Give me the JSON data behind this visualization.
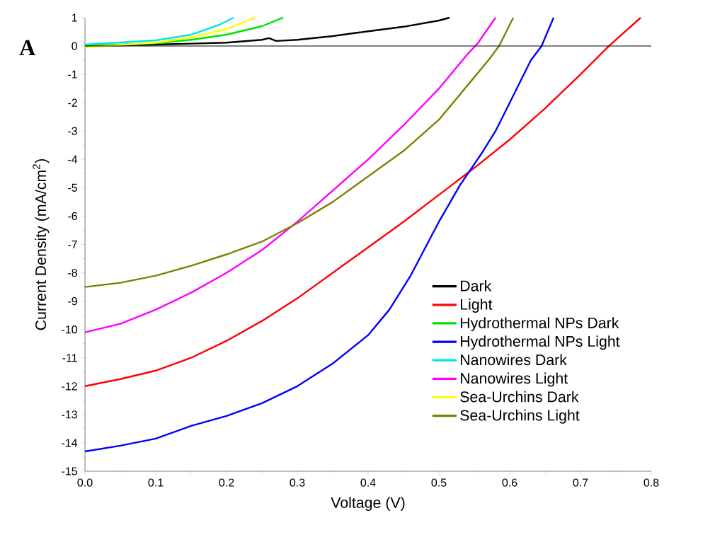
{
  "chart_data": {
    "type": "line",
    "xlabel": "Voltage (V)",
    "ylabel": "Current Density (mA/cm$^{2}$)",
    "annotations": [
      "A"
    ],
    "xlim": [
      0,
      0.8
    ],
    "ylim": [
      -15,
      1
    ],
    "xticks": [
      {
        "value": 0,
        "label": "0.0"
      },
      0.1,
      0.2,
      0.3,
      0.4,
      0.5,
      0.6,
      0.7,
      0.8
    ],
    "yticks": [
      -15,
      -14,
      -13,
      -12,
      -11,
      -10,
      -9,
      -8,
      -7,
      -6,
      -5,
      -4,
      -3,
      -2,
      -1,
      0,
      1
    ],
    "legend": "bottom right",
    "grid": false,
    "marker": "none",
    "line_style": "solid",
    "ref_lines": [
      {
        "axis": "y",
        "value": 0,
        "color": "#000000"
      }
    ],
    "series": [
      {
        "name": "Dark",
        "color": "#000000",
        "x": [
          0,
          0.1,
          0.2,
          0.25,
          0.26,
          0.27,
          0.3,
          0.35,
          0.4,
          0.45,
          0.5,
          0.515
        ],
        "values": [
          0,
          0.05,
          0.12,
          0.22,
          0.28,
          0.18,
          0.22,
          0.35,
          0.52,
          0.68,
          0.9,
          1
        ]
      },
      {
        "name": "Light",
        "color": "#ff0000",
        "x": [
          0,
          0.05,
          0.1,
          0.15,
          0.2,
          0.25,
          0.3,
          0.35,
          0.4,
          0.45,
          0.5,
          0.55,
          0.6,
          0.65,
          0.7,
          0.74,
          0.785
        ],
        "values": [
          -12,
          -11.75,
          -11.45,
          -11,
          -10.4,
          -9.7,
          -8.9,
          -8,
          -7.1,
          -6.2,
          -5.25,
          -4.3,
          -3.3,
          -2.2,
          -1,
          0,
          1
        ]
      },
      {
        "name": "Hydrothermal NPs Dark",
        "color": "#00e000",
        "x": [
          0,
          0.1,
          0.15,
          0.2,
          0.25,
          0.28
        ],
        "values": [
          0,
          0.1,
          0.22,
          0.4,
          0.7,
          1
        ]
      },
      {
        "name": "Hydrothermal NPs Light",
        "color": "#0000ff",
        "x": [
          0,
          0.05,
          0.1,
          0.15,
          0.2,
          0.25,
          0.3,
          0.35,
          0.4,
          0.43,
          0.46,
          0.5,
          0.53,
          0.56,
          0.58,
          0.6,
          0.63,
          0.645,
          0.662
        ],
        "values": [
          -14.3,
          -14.1,
          -13.85,
          -13.4,
          -13.05,
          -12.6,
          -12,
          -11.2,
          -10.2,
          -9.3,
          -8.1,
          -6.2,
          -4.9,
          -3.8,
          -3,
          -2,
          -0.5,
          0,
          1
        ]
      },
      {
        "name": "Nanowires Dark",
        "color": "#00e5ee",
        "x": [
          0,
          0.1,
          0.15,
          0.19,
          0.21
        ],
        "values": [
          0.05,
          0.2,
          0.4,
          0.75,
          1
        ]
      },
      {
        "name": "Nanowires Light",
        "color": "#ff00ff",
        "x": [
          0,
          0.05,
          0.1,
          0.15,
          0.2,
          0.25,
          0.3,
          0.35,
          0.4,
          0.45,
          0.5,
          0.54,
          0.555,
          0.58
        ],
        "values": [
          -10.1,
          -9.8,
          -9.3,
          -8.7,
          -8,
          -7.2,
          -6.2,
          -5.1,
          -4,
          -2.8,
          -1.5,
          -0.3,
          0.1,
          1
        ]
      },
      {
        "name": "Sea-Urchins Dark",
        "color": "#ffff00",
        "x": [
          0,
          0.1,
          0.15,
          0.2,
          0.24
        ],
        "values": [
          -0.05,
          0.12,
          0.3,
          0.6,
          1
        ]
      },
      {
        "name": "Sea-Urchins Light",
        "color": "#808000",
        "x": [
          0,
          0.05,
          0.1,
          0.15,
          0.2,
          0.25,
          0.3,
          0.35,
          0.4,
          0.45,
          0.5,
          0.55,
          0.57,
          0.585,
          0.605
        ],
        "values": [
          -8.5,
          -8.35,
          -8.1,
          -7.75,
          -7.35,
          -6.9,
          -6.25,
          -5.5,
          -4.6,
          -3.7,
          -2.6,
          -1.1,
          -0.5,
          0,
          1
        ]
      }
    ]
  }
}
